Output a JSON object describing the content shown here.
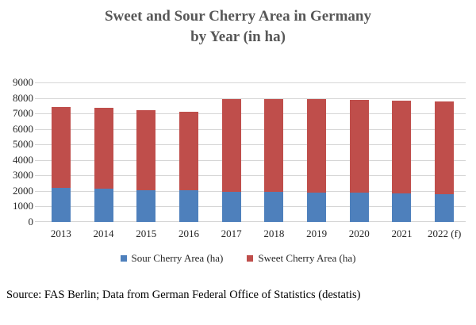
{
  "chart": {
    "title_line1": "Sweet and Sour Cherry Area in Germany",
    "title_line2": "by Year (in ha)",
    "source": "Source: FAS Berlin; Data from German Federal Office of Statistics (destatis)"
  },
  "chart_data": {
    "type": "bar",
    "stacked": true,
    "title": "Sweet and Sour Cherry Area in Germany by Year (in ha)",
    "categories": [
      "2013",
      "2014",
      "2015",
      "2016",
      "2017",
      "2018",
      "2019",
      "2020",
      "2021",
      "2022 (f)"
    ],
    "series": [
      {
        "name": "Sour Cherry Area (ha)",
        "color": "#4e80bc",
        "values": [
          2180,
          2140,
          2060,
          2020,
          1940,
          1930,
          1910,
          1900,
          1830,
          1800
        ]
      },
      {
        "name": "Sweet Cherry Area (ha)",
        "color": "#bf4e4b",
        "values": [
          5220,
          5210,
          5140,
          5080,
          6010,
          6000,
          6040,
          6000,
          5970,
          5980
        ]
      }
    ],
    "totals": [
      7400,
      7350,
      7200,
      7100,
      7950,
      7930,
      7950,
      7900,
      7800,
      7780
    ],
    "xlabel": "",
    "ylabel": "",
    "ylim": [
      0,
      9000
    ],
    "ytick_step": 1000,
    "grid": true,
    "legend_position": "bottom",
    "gridline_color": "#d6d6d6",
    "title_color": "#575757"
  }
}
